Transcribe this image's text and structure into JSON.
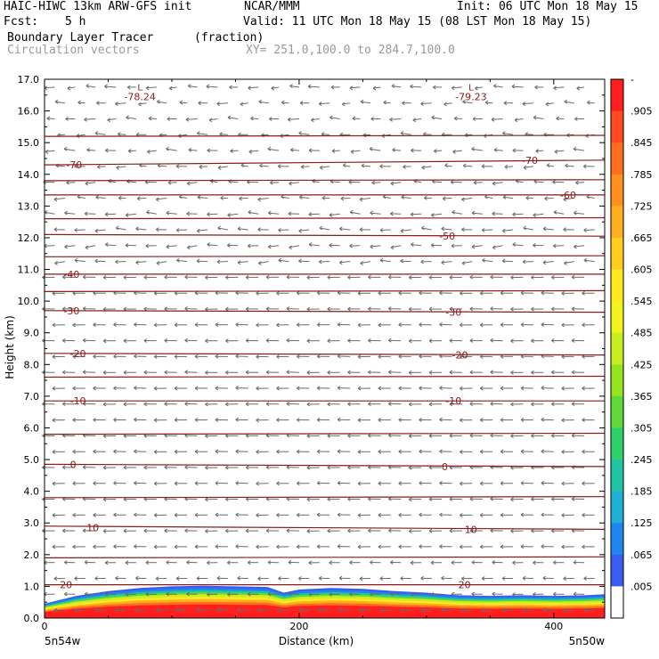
{
  "header": {
    "model": "HAIC-HIWC 13km ARW-GFS init",
    "org": "NCAR/MMM",
    "init": "Init: 06 UTC Mon 18 May 15",
    "fcst_label": "Fcst:",
    "fcst_value": "5 h",
    "valid": "Valid: 11 UTC Mon 18 May 15 (08 LST Mon 18 May 15)",
    "field": "Boundary Layer Tracer",
    "units": "(fraction)",
    "vectors": "Circulation vectors",
    "xy": "XY= 251.0,100.0 to 284.7,100.0"
  },
  "chart_data": {
    "type": "heatmap",
    "xlabel": "Distance (km)",
    "ylabel": "Height (km)",
    "xlim": [
      0,
      440
    ],
    "ylim": [
      0,
      17
    ],
    "x_ticks": [
      0,
      200,
      400
    ],
    "y_ticks": [
      "0.0",
      "1.0",
      "2.0",
      "3.0",
      "4.0",
      "5.0",
      "6.0",
      "7.0",
      "8.0",
      "9.0",
      "10.0",
      "11.0",
      "12.0",
      "13.0",
      "14.0",
      "15.0",
      "16.0",
      "17.0"
    ],
    "x_endpoints": [
      "5n54w",
      "5n50w"
    ],
    "colorbar": {
      "labels": [
        "-",
        ".905",
        ".845",
        ".785",
        ".725",
        ".665",
        ".605",
        ".545",
        ".485",
        ".425",
        ".365",
        ".305",
        ".245",
        ".185",
        ".125",
        ".065",
        ".005"
      ],
      "colors": [
        "#ff1f1f",
        "#ff4b1f",
        "#ff6e1f",
        "#ff8f1f",
        "#ffae1f",
        "#ffcc1f",
        "#ffe81f",
        "#f2f21f",
        "#c9ee1f",
        "#96e41f",
        "#5fd83a",
        "#2fcf6a",
        "#1fc4a5",
        "#1fb0d8",
        "#1f86ee",
        "#3a5cf2",
        "#ffffff"
      ]
    },
    "tracer_top_km": [
      [
        0,
        0.45
      ],
      [
        10,
        0.55
      ],
      [
        25,
        0.7
      ],
      [
        50,
        0.85
      ],
      [
        75,
        0.95
      ],
      [
        100,
        1.0
      ],
      [
        125,
        1.02
      ],
      [
        150,
        1.0
      ],
      [
        175,
        0.98
      ],
      [
        188,
        0.8
      ],
      [
        200,
        0.9
      ],
      [
        225,
        0.95
      ],
      [
        250,
        0.92
      ],
      [
        275,
        0.85
      ],
      [
        300,
        0.8
      ],
      [
        325,
        0.72
      ],
      [
        350,
        0.7
      ],
      [
        375,
        0.72
      ],
      [
        400,
        0.7
      ],
      [
        425,
        0.72
      ],
      [
        440,
        0.75
      ]
    ],
    "temperature_contours": [
      {
        "label": "20",
        "y": [
          1.05,
          1.05
        ]
      },
      {
        "label": "10",
        "y": [
          2.9,
          2.8
        ]
      },
      {
        "label": "0",
        "y": [
          4.85,
          4.78
        ]
      },
      {
        "label": "-10",
        "y": [
          6.85,
          6.85
        ]
      },
      {
        "label": "-20",
        "y": [
          8.35,
          8.3
        ]
      },
      {
        "label": "-30",
        "y": [
          9.7,
          9.65
        ]
      },
      {
        "label": "-40",
        "y": [
          10.85,
          10.85
        ]
      },
      {
        "label": "-50",
        "y": [
          12.1,
          12.05
        ]
      },
      {
        "label": "-60",
        "y": [
          13.35,
          13.35
        ]
      },
      {
        "label": "-70",
        "y": [
          14.3,
          14.45
        ]
      }
    ],
    "extra_contours_km": [
      1.9,
      3.8,
      5.8,
      7.6,
      10.3,
      11.4,
      12.6,
      13.8,
      15.2
    ],
    "contour_labels": [
      {
        "text": "20",
        "x": 12,
        "y": 1.05
      },
      {
        "text": "20",
        "x": 325,
        "y": 1.05
      },
      {
        "text": "10",
        "x": 33,
        "y": 2.85
      },
      {
        "text": "10",
        "x": 330,
        "y": 2.8
      },
      {
        "text": "0",
        "x": 20,
        "y": 4.85
      },
      {
        "text": "0",
        "x": 312,
        "y": 4.78
      },
      {
        "text": "-10",
        "x": 20,
        "y": 6.85
      },
      {
        "text": "-10",
        "x": 315,
        "y": 6.85
      },
      {
        "text": "-20",
        "x": 20,
        "y": 8.35
      },
      {
        "text": "-20",
        "x": 320,
        "y": 8.3
      },
      {
        "text": "-30",
        "x": 15,
        "y": 9.7
      },
      {
        "text": "-30",
        "x": 315,
        "y": 9.65
      },
      {
        "text": "-40",
        "x": 15,
        "y": 10.85
      },
      {
        "text": "-50",
        "x": 310,
        "y": 12.05
      },
      {
        "text": "-60",
        "x": 405,
        "y": 13.35
      },
      {
        "text": "-70",
        "x": 17,
        "y": 14.3
      },
      {
        "text": "-70",
        "x": 375,
        "y": 14.45
      }
    ],
    "lows": [
      {
        "text": "L",
        "value": "-78.24",
        "x": 75,
        "y": 16.7
      },
      {
        "text": "L",
        "value": "-79.23",
        "x": 335,
        "y": 16.7
      }
    ]
  }
}
